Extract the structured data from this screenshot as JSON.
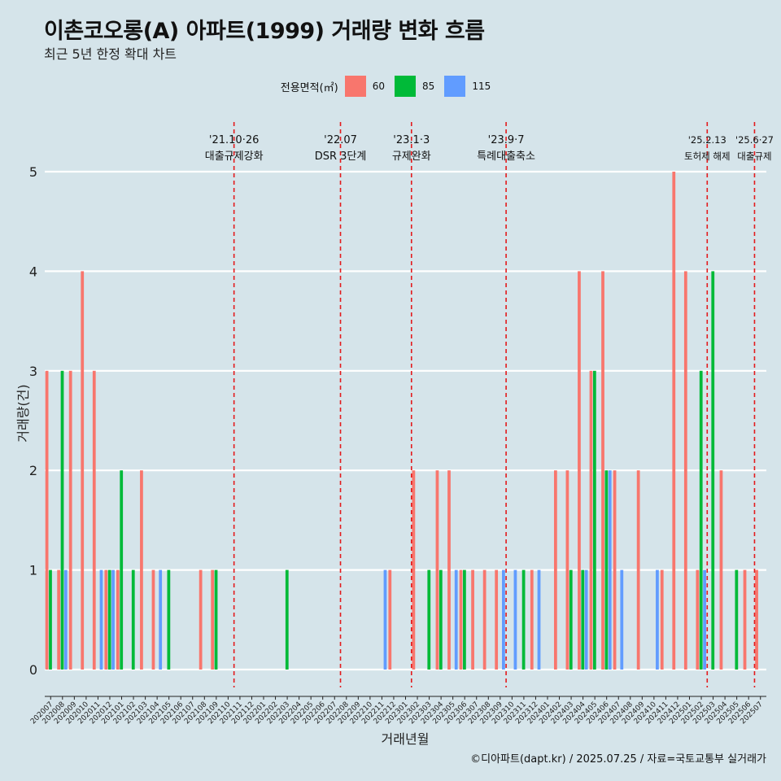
{
  "title": "이촌코오롱(A) 아파트(1999) 거래량 변화 흐름",
  "subtitle": "최근 5년 한정 확대 차트",
  "caption": "©디아파트(dapt.kr) / 2025.07.25 / 자료=국토교통부 실거래가",
  "legend": {
    "title": "전용면적(㎡)",
    "items": [
      {
        "label": "60",
        "color": "#f8766d"
      },
      {
        "label": "85",
        "color": "#00ba38"
      },
      {
        "label": "115",
        "color": "#619cff"
      }
    ]
  },
  "chart_data": {
    "type": "bar",
    "xlabel": "거래년월",
    "ylabel": "거래량(건)",
    "ylim": [
      0,
      5
    ],
    "yticks": [
      0,
      1,
      2,
      3,
      4,
      5
    ],
    "categories": [
      "202007",
      "202008",
      "202009",
      "202010",
      "202011",
      "202012",
      "202101",
      "202102",
      "202103",
      "202104",
      "202105",
      "202106",
      "202107",
      "202108",
      "202109",
      "202110",
      "202111",
      "202112",
      "202201",
      "202202",
      "202203",
      "202204",
      "202205",
      "202206",
      "202207",
      "202208",
      "202209",
      "202210",
      "202211",
      "202212",
      "202301",
      "202302",
      "202303",
      "202304",
      "202305",
      "202306",
      "202307",
      "202308",
      "202309",
      "202310",
      "202311",
      "202312",
      "202401",
      "202402",
      "202403",
      "202404",
      "202405",
      "202406",
      "202407",
      "202408",
      "202409",
      "202410",
      "202411",
      "202412",
      "202501",
      "202502",
      "202503",
      "202504",
      "202505",
      "202506",
      "202507"
    ],
    "series": [
      {
        "name": "60",
        "color": "#f8766d",
        "values": [
          3,
          1,
          3,
          4,
          3,
          1,
          1,
          0,
          2,
          1,
          0,
          0,
          0,
          1,
          1,
          0,
          0,
          0,
          0,
          0,
          0,
          0,
          0,
          0,
          0,
          0,
          0,
          0,
          0,
          1,
          0,
          2,
          0,
          2,
          2,
          1,
          1,
          1,
          1,
          0,
          0,
          1,
          0,
          2,
          2,
          4,
          3,
          4,
          2,
          0,
          2,
          0,
          1,
          5,
          4,
          1,
          0,
          2,
          0,
          1,
          1
        ]
      },
      {
        "name": "85",
        "color": "#00ba38",
        "values": [
          1,
          3,
          0,
          0,
          0,
          1,
          2,
          1,
          0,
          0,
          1,
          0,
          0,
          0,
          1,
          0,
          0,
          0,
          0,
          0,
          1,
          0,
          0,
          0,
          0,
          0,
          0,
          0,
          0,
          0,
          0,
          0,
          1,
          1,
          0,
          1,
          0,
          0,
          0,
          0,
          1,
          0,
          0,
          0,
          1,
          1,
          3,
          2,
          0,
          0,
          0,
          0,
          0,
          0,
          0,
          3,
          4,
          0,
          1,
          0,
          0
        ]
      },
      {
        "name": "115",
        "color": "#619cff",
        "values": [
          0,
          1,
          0,
          0,
          1,
          1,
          0,
          0,
          0,
          1,
          0,
          0,
          0,
          0,
          0,
          0,
          0,
          0,
          0,
          0,
          0,
          0,
          0,
          0,
          0,
          0,
          0,
          0,
          1,
          0,
          0,
          0,
          0,
          0,
          1,
          0,
          0,
          0,
          1,
          1,
          0,
          1,
          0,
          0,
          0,
          1,
          0,
          2,
          1,
          0,
          0,
          1,
          0,
          0,
          0,
          1,
          0,
          0,
          0,
          0,
          0
        ]
      }
    ],
    "annotations": [
      {
        "date": "'21.10·26",
        "label": "대출규제강화",
        "category": "202110"
      },
      {
        "date": "'22.07",
        "label": "DSR 3단계",
        "category": "202207"
      },
      {
        "date": "'23.1·3",
        "label": "규제완화",
        "category": "202301"
      },
      {
        "date": "'23.9·7",
        "label": "특례대출축소",
        "category": "202309"
      },
      {
        "date": "'25.2.13",
        "label": "토허제 해제",
        "category": "202502"
      },
      {
        "date": "'25.6·27",
        "label": "대출규제",
        "category": "202506"
      }
    ],
    "grid": true,
    "legend_position": "top"
  }
}
